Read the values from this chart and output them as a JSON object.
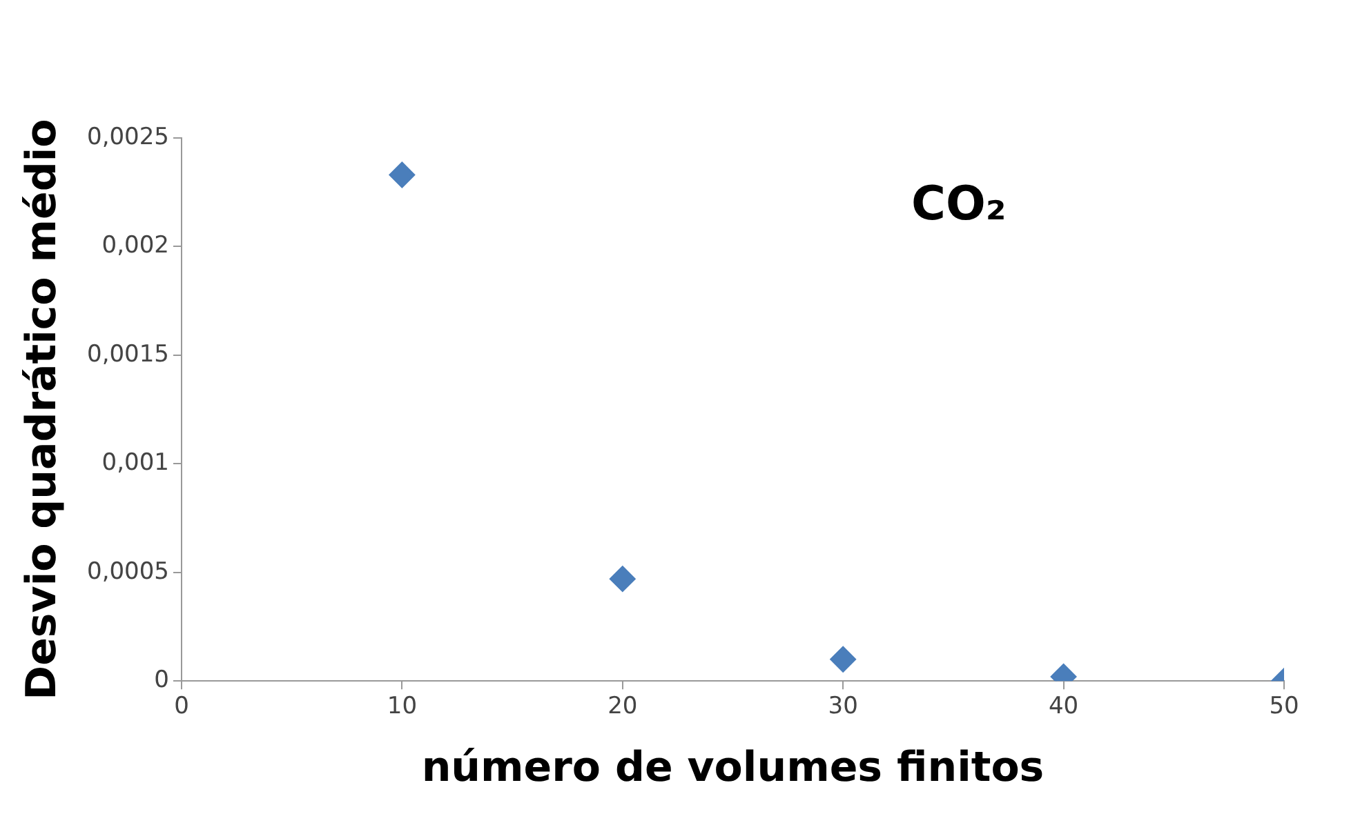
{
  "chart_data": {
    "type": "scatter",
    "xlabel": "número de volumes finitos",
    "ylabel": "Desvio quadrático médio",
    "annotations": [
      "CO₂"
    ],
    "x": [
      10,
      20,
      30,
      40,
      50
    ],
    "series": [
      {
        "color": "#4a7ebb",
        "values": [
          0.00233,
          0.00047,
          0.0001,
          2e-05,
          0
        ]
      }
    ],
    "xlim": [
      0,
      50
    ],
    "xticks": [
      0,
      10,
      20,
      30,
      40,
      50
    ],
    "ylim": [
      0,
      0.0025
    ],
    "yticks": [
      {
        "value": 0,
        "label": "0"
      },
      {
        "value": 0.0005,
        "label": "0,0005"
      },
      {
        "value": 0.001,
        "label": "0,001"
      },
      {
        "value": 0.0015,
        "label": "0,0015"
      },
      {
        "value": 0.002,
        "label": "0,002"
      },
      {
        "value": 0.0025,
        "label": "0,0025"
      }
    ],
    "grid": false,
    "legend": false,
    "marker": "diamond"
  }
}
